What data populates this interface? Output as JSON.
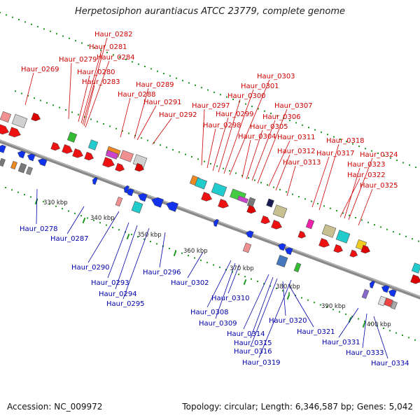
{
  "title": "Herpetosiphon aurantiacus ATCC 23779, complete genome",
  "footer": {
    "accession": "Accession: NC_009972",
    "summary": "Topology: circular; Length: 6,346,587 bp; Genes: 5,042"
  },
  "colors": {
    "forward_label": "#cc0000",
    "reverse_label": "#0000aa",
    "backbone": "#8a8a8a",
    "tick": "#229922"
  },
  "ruler_labels": [
    "330 kbp",
    "340 kbp",
    "350 kbp",
    "360 kbp",
    "370 kbp",
    "380 kbp",
    "390 kbp",
    "400 kbp"
  ],
  "forward_genes": [
    "Haur_0269",
    "Haur_0279",
    "Haur_0280",
    "Haur_0281",
    "Haur_0282",
    "Haur_0283",
    "Haur_0284",
    "Haur_0288",
    "Haur_0289",
    "Haur_0291",
    "Haur_0292",
    "Haur_0297",
    "Haur_0298",
    "Haur_0299",
    "Haur_0300",
    "Haur_0301",
    "Haur_0303",
    "Haur_0304",
    "Haur_0305",
    "Haur_0306",
    "Haur_0307",
    "Haur_0311",
    "Haur_0312",
    "Haur_0313",
    "Haur_0317",
    "Haur_0318",
    "Haur_0322",
    "Haur_0323",
    "Haur_0324",
    "Haur_0325"
  ],
  "reverse_genes": [
    "Haur_0278",
    "Haur_0287",
    "Haur_0290",
    "Haur_0293",
    "Haur_0294",
    "Haur_0295",
    "Haur_0296",
    "Haur_0302",
    "Haur_0308",
    "Haur_0309",
    "Haur_0310",
    "Haur_0314",
    "Haur_0315",
    "Haur_0316",
    "Haur_0319",
    "Haur_0320",
    "Haur_0321",
    "Haur_0331",
    "Haur_0333",
    "Haur_0334"
  ]
}
